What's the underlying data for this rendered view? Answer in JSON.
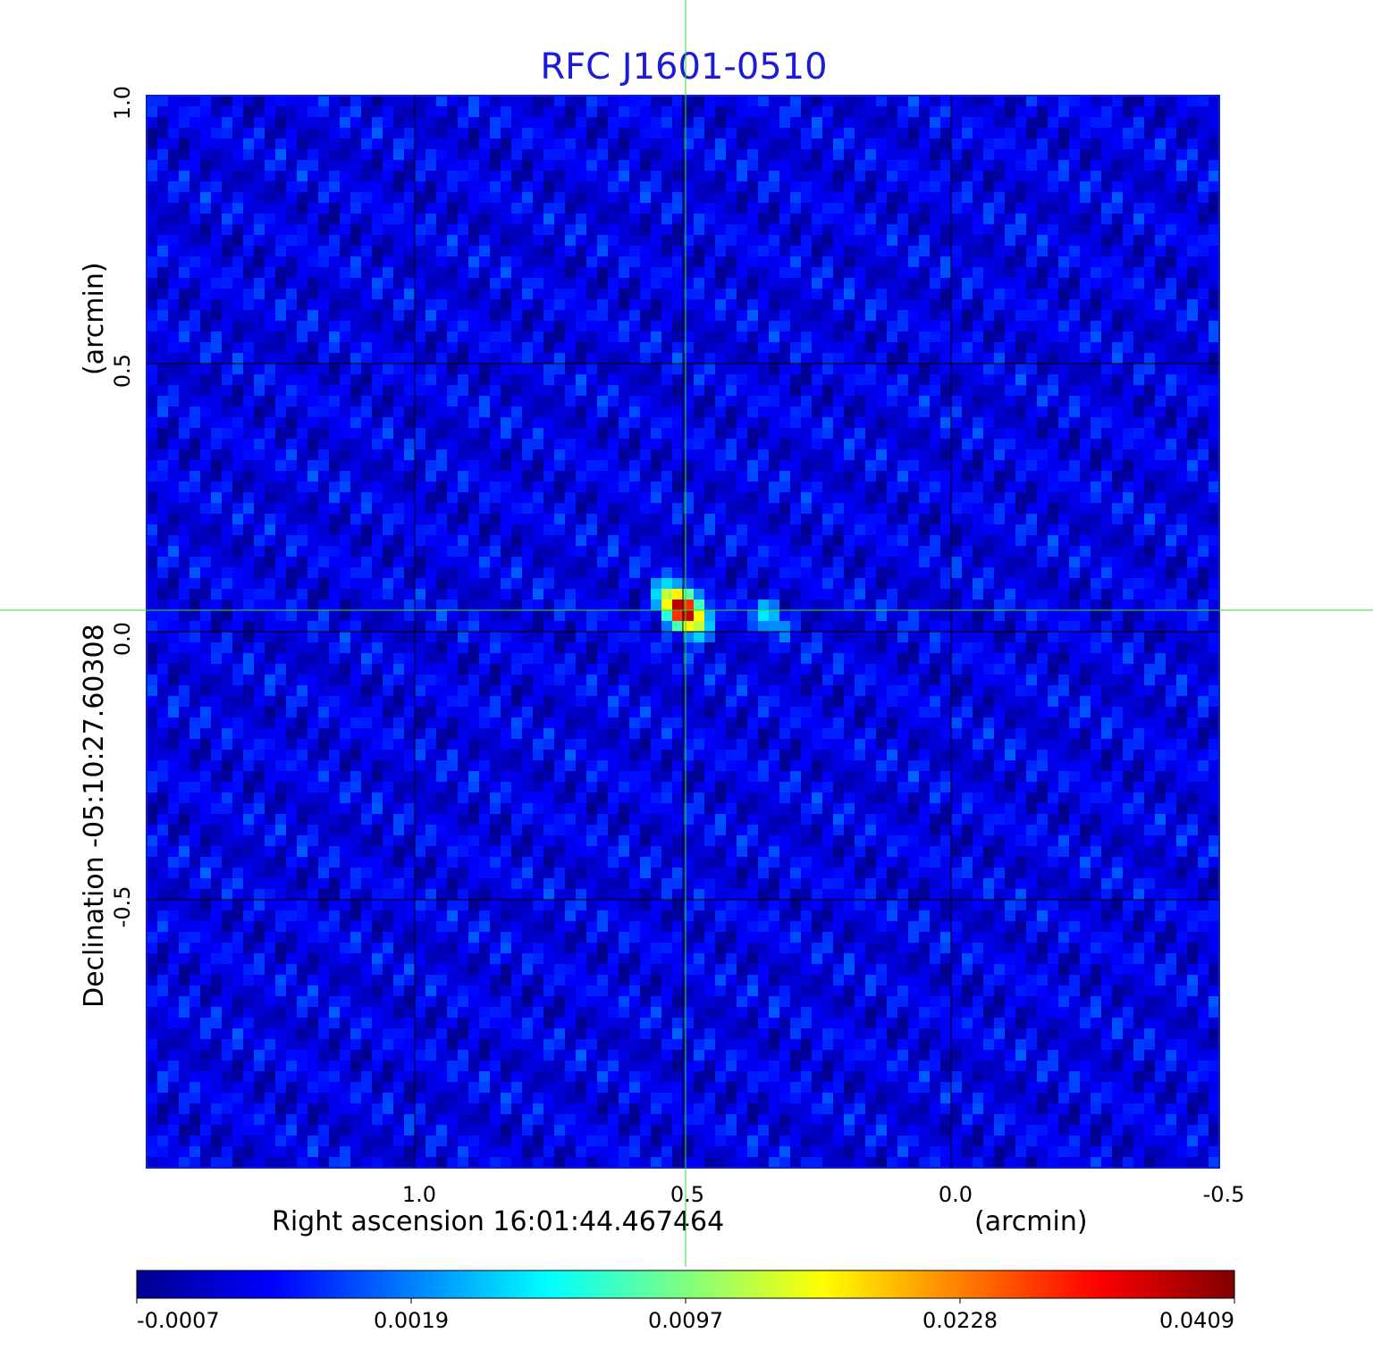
{
  "chart_data": {
    "type": "heatmap",
    "title": "RFC J1601-0510",
    "xlabel": "Right ascension  16:01:44.467464",
    "xunit": "(arcmin)",
    "ylabel": "Declination  -05:10:27.60308",
    "yunit": "(arcmin)",
    "x_ticks": [
      1.0,
      0.5,
      0.0,
      -0.5
    ],
    "x_tick_labels": [
      "1.0",
      "0.5",
      "0.0",
      "-0.5"
    ],
    "y_ticks": [
      1.0,
      0.5,
      0.0,
      -0.5
    ],
    "y_tick_labels": [
      "1.0",
      "0.5",
      "0.0",
      "-0.5"
    ],
    "xlim": [
      1.5,
      -0.5
    ],
    "ylim": [
      -1.0,
      1.0
    ],
    "grid": true,
    "crosshair": {
      "x": 0.495,
      "y": 0.04
    },
    "colormap": "jet",
    "colorbar": {
      "labels": [
        "-0.0007",
        "0.0019",
        "0.0097",
        "0.0228",
        "0.0409"
      ],
      "values": [
        -0.0007,
        0.0019,
        0.0097,
        0.0228,
        0.0409
      ],
      "colors": [
        "#00008f",
        "#0000ff",
        "#00ffff",
        "#ffff00",
        "#ff0000",
        "#800000"
      ]
    },
    "components": [
      {
        "x": 0.5,
        "y": 0.04,
        "peak": 0.0409,
        "note": "core"
      },
      {
        "x": 0.34,
        "y": 0.03,
        "peak": 0.0045,
        "note": "secondary component"
      }
    ],
    "background_level": 0.0003
  },
  "colors": {
    "title": "#1c1cd6",
    "grid": "#000000",
    "crosshair": "#33dd33"
  }
}
